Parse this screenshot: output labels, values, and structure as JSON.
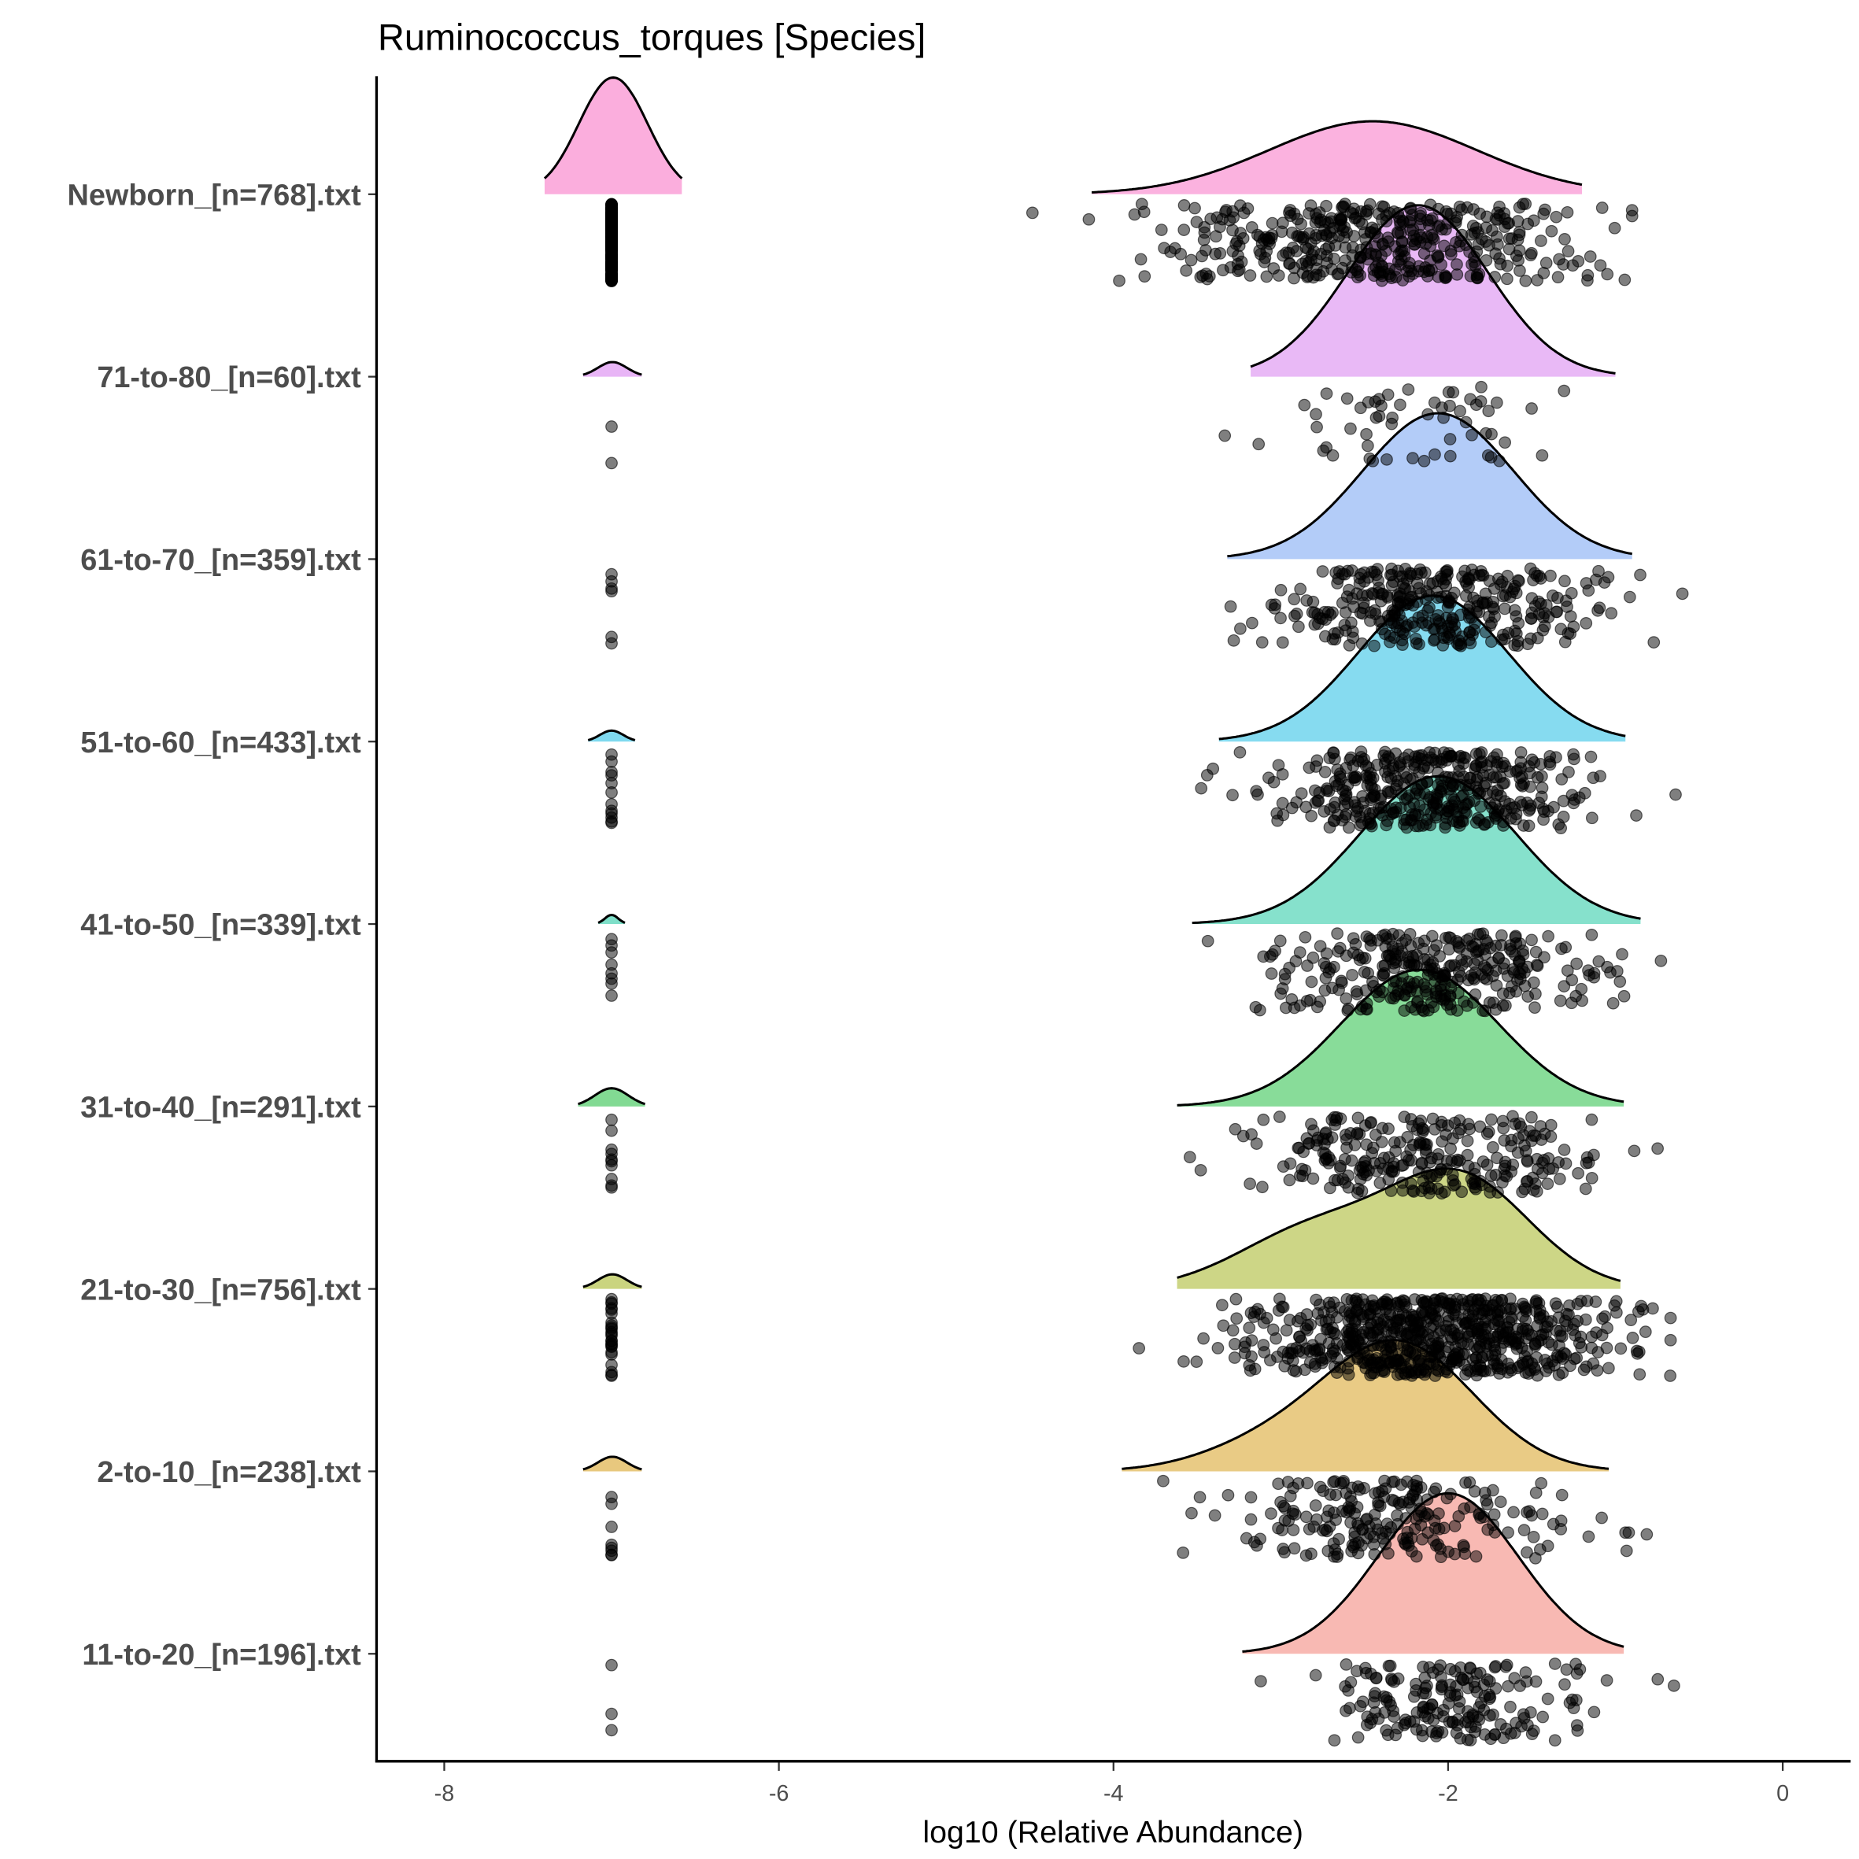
{
  "chart_data": {
    "type": "ridgeline",
    "title": "Ruminococcus_torques [Species]",
    "xlabel": "log10 (Relative Abundance)",
    "ylabel": "",
    "xlim": [
      -8.4,
      0.4
    ],
    "xticks": [
      -8,
      -6,
      -4,
      -2,
      0
    ],
    "xtick_labels": [
      "-8",
      "-6",
      "-4",
      "-2",
      "0"
    ],
    "zero_value": -7,
    "groups": [
      {
        "label": "Newborn_[n=768].txt",
        "color": "#FBAEDD",
        "n": 768,
        "n_zero": 330,
        "range": [
          -4.13,
          -1.2
        ],
        "mean": -2.45,
        "sd": 0.62,
        "peak": 0.4,
        "components": [
          {
            "mean": -2.45,
            "sd": 0.62,
            "w": 1
          }
        ],
        "zero_peak": 0.64,
        "zero_range": [
          -7.4,
          -6.58
        ]
      },
      {
        "label": "71-to-80_[n=60].txt",
        "color": "#E8B5F6",
        "n": 60,
        "n_zero": 2,
        "range": [
          -3.18,
          -1.0
        ],
        "mean": -2.18,
        "sd": 0.42,
        "peak": 0.94,
        "components": [
          {
            "mean": -2.18,
            "sd": 0.42,
            "w": 1
          }
        ],
        "zero_peak": 0.08,
        "zero_range": [
          -7.17,
          -6.82
        ]
      },
      {
        "label": "61-to-70_[n=359].txt",
        "color": "#AFC9F8",
        "n": 359,
        "n_zero": 6,
        "range": [
          -3.32,
          -0.9
        ],
        "mean": -2.06,
        "sd": 0.45,
        "peak": 0.8,
        "components": [
          {
            "mean": -2.06,
            "sd": 0.45,
            "w": 1
          }
        ],
        "zero_peak": 0,
        "zero_range": [
          -7.05,
          -6.95
        ]
      },
      {
        "label": "51-to-60_[n=433].txt",
        "color": "#7FD9EF",
        "n": 433,
        "n_zero": 12,
        "range": [
          -3.37,
          -0.94
        ],
        "mean": -2.09,
        "sd": 0.45,
        "peak": 0.8,
        "components": [
          {
            "mean": -2.09,
            "sd": 0.45,
            "w": 1
          }
        ],
        "zero_peak": 0.06,
        "zero_range": [
          -7.14,
          -6.86
        ]
      },
      {
        "label": "41-to-50_[n=339].txt",
        "color": "#7FDFC9",
        "n": 339,
        "n_zero": 8,
        "range": [
          -3.53,
          -0.85
        ],
        "mean": -2.06,
        "sd": 0.47,
        "peak": 0.81,
        "components": [
          {
            "mean": -2.06,
            "sd": 0.47,
            "w": 1
          }
        ],
        "zero_peak": 0.05,
        "zero_range": [
          -7.08,
          -6.92
        ]
      },
      {
        "label": "31-to-40_[n=291].txt",
        "color": "#82DA93",
        "n": 291,
        "n_zero": 10,
        "range": [
          -3.62,
          -0.95
        ],
        "mean": -2.17,
        "sd": 0.47,
        "peak": 0.75,
        "components": [
          {
            "mean": -2.17,
            "sd": 0.47,
            "w": 1
          }
        ],
        "zero_peak": 0.1,
        "zero_range": [
          -7.2,
          -6.8
        ]
      },
      {
        "label": "21-to-30_[n=756].txt",
        "color": "#CAD47F",
        "n": 756,
        "n_zero": 25,
        "range": [
          -3.62,
          -0.97
        ],
        "mean": -2.1,
        "sd": 0.55,
        "peak": 0.66,
        "components": [
          {
            "mean": -1.93,
            "sd": 0.42,
            "w": 0.65
          },
          {
            "mean": -2.8,
            "sd": 0.45,
            "w": 0.35
          }
        ],
        "zero_peak": 0.08,
        "zero_range": [
          -7.17,
          -6.82
        ]
      },
      {
        "label": "2-to-10_[n=238].txt",
        "color": "#E8C87E",
        "n": 238,
        "n_zero": 8,
        "range": [
          -3.95,
          -1.04
        ],
        "mean": -2.35,
        "sd": 0.5,
        "peak": 0.72,
        "components": [
          {
            "mean": -2.3,
            "sd": 0.45,
            "w": 0.85
          },
          {
            "mean": -3.1,
            "sd": 0.4,
            "w": 0.15
          }
        ],
        "zero_peak": 0.08,
        "zero_range": [
          -7.17,
          -6.82
        ]
      },
      {
        "label": "11-to-20_[n=196].txt",
        "color": "#F8B5AF",
        "n": 196,
        "n_zero": 3,
        "range": [
          -3.23,
          -0.95
        ],
        "mean": -2.0,
        "sd": 0.42,
        "peak": 0.88,
        "components": [
          {
            "mean": -2.0,
            "sd": 0.42,
            "w": 1
          }
        ],
        "zero_peak": 0,
        "zero_range": [
          -7.05,
          -6.95
        ]
      }
    ]
  }
}
